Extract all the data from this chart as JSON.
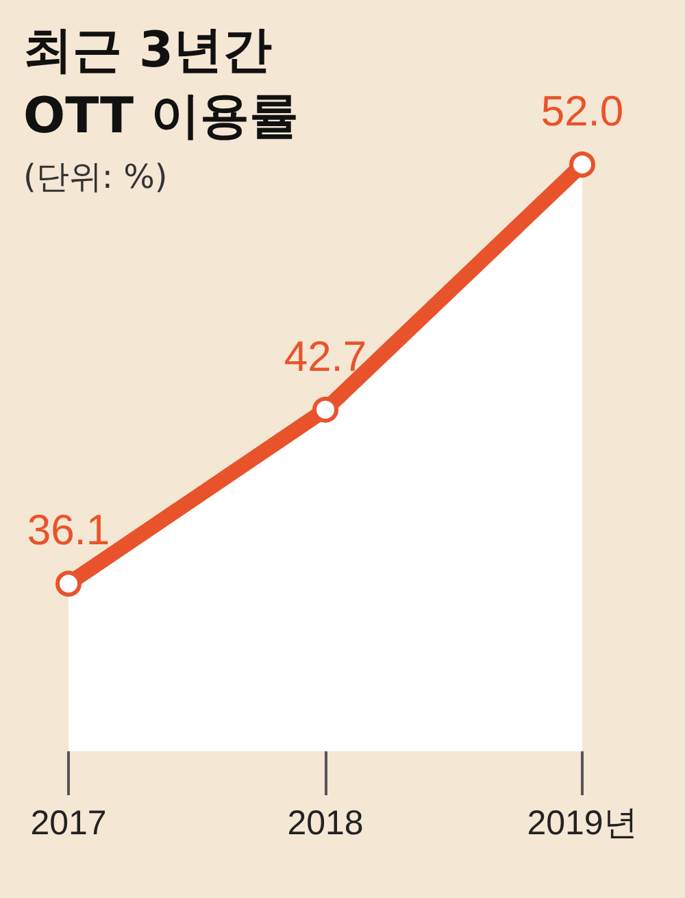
{
  "chart_data": {
    "type": "area",
    "title": "최근 3년간\nOTT 이용률",
    "subtitle": "(단위: %)",
    "categories": [
      "2017",
      "2018",
      "2019년"
    ],
    "series": [
      {
        "color": "#e9532b",
        "values": [
          36.1,
          42.7,
          52.0
        ],
        "value_labels": [
          "36.1",
          "42.7",
          "52.0"
        ]
      }
    ],
    "marker": "circle"
  }
}
